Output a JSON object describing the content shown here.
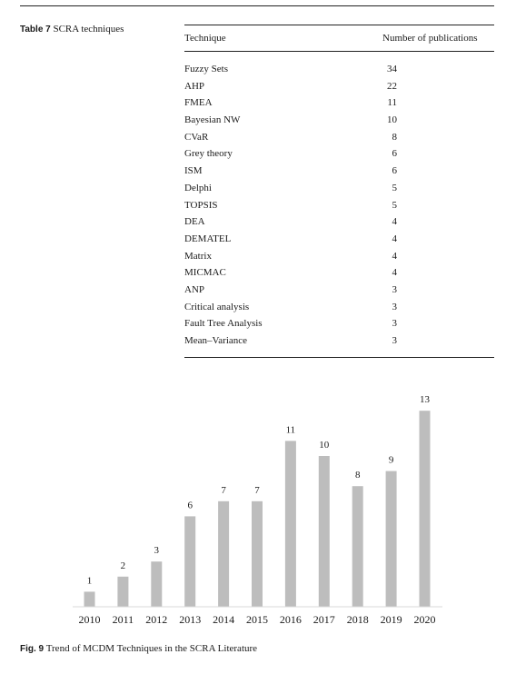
{
  "table": {
    "label": "Table 7",
    "caption": "SCRA techniques",
    "headers": [
      "Technique",
      "Number of publications"
    ],
    "rows": [
      {
        "technique": "Fuzzy Sets",
        "count": "34"
      },
      {
        "technique": "AHP",
        "count": "22"
      },
      {
        "technique": "FMEA",
        "count": "11"
      },
      {
        "technique": "Bayesian NW",
        "count": "10"
      },
      {
        "technique": "CVaR",
        "count": "8"
      },
      {
        "technique": "Grey theory",
        "count": "6"
      },
      {
        "technique": "ISM",
        "count": "6"
      },
      {
        "technique": "Delphi",
        "count": "5"
      },
      {
        "technique": "TOPSIS",
        "count": "5"
      },
      {
        "technique": "DEA",
        "count": "4"
      },
      {
        "technique": "DEMATEL",
        "count": "4"
      },
      {
        "technique": "Matrix",
        "count": "4"
      },
      {
        "technique": "MICMAC",
        "count": "4"
      },
      {
        "technique": "ANP",
        "count": "3"
      },
      {
        "technique": "Critical analysis",
        "count": "3"
      },
      {
        "technique": "Fault Tree Analysis",
        "count": "3"
      },
      {
        "technique": "Mean–Variance",
        "count": "3"
      }
    ]
  },
  "figure": {
    "label": "Fig. 9",
    "caption": "Trend of MCDM Techniques in the SCRA Literature"
  },
  "chart_data": {
    "type": "bar",
    "categories": [
      "2010",
      "2011",
      "2012",
      "2013",
      "2014",
      "2015",
      "2016",
      "2017",
      "2018",
      "2019",
      "2020"
    ],
    "values": [
      1,
      2,
      3,
      6,
      7,
      7,
      11,
      10,
      8,
      9,
      13
    ],
    "data_labels": true,
    "ylim": [
      0,
      13
    ],
    "bar_color": "#bdbdbd",
    "axis_color": "#d9d9d9",
    "grid": false,
    "legend": "none"
  }
}
